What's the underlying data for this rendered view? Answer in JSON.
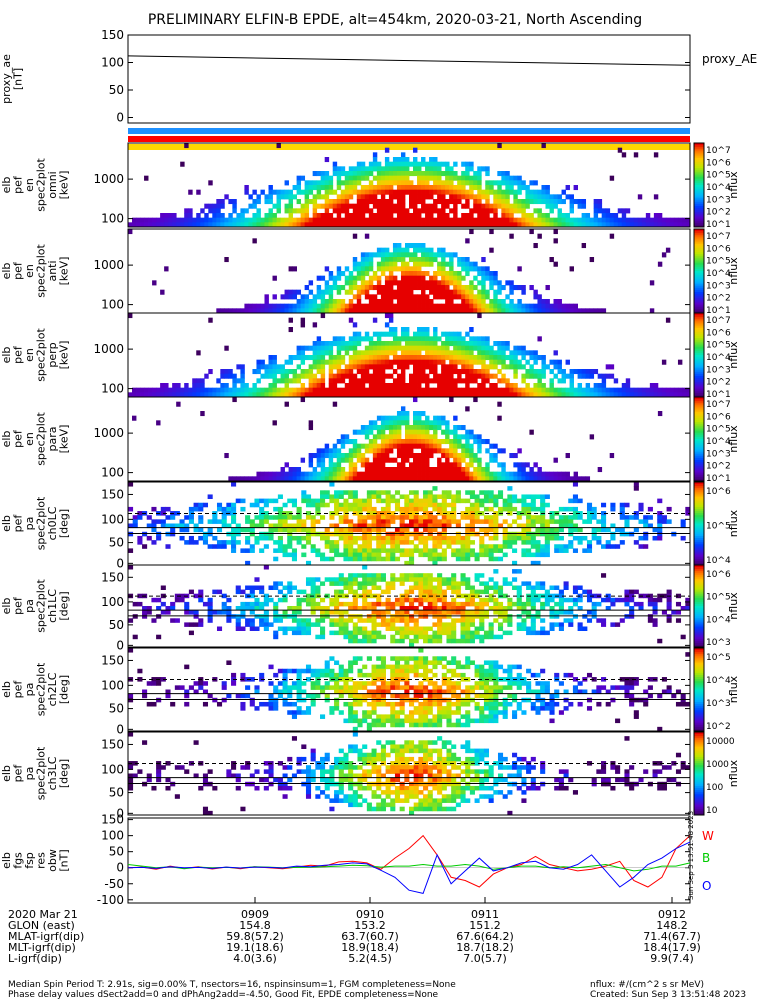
{
  "title": "PRELIMINARY ELFIN-B EPDE, alt=454km, 2020-03-21, North Ascending",
  "colors": {
    "w": "#ff0000",
    "b": "#00cc00",
    "o": "#0000ff",
    "bar1": "#1e90ff",
    "bar2": "#ff0000",
    "bar3": "#ffd700"
  },
  "chart_data": [
    {
      "type": "line",
      "panel": "proxy_ae",
      "ylabel": [
        "proxy_ae",
        "[nT]"
      ],
      "yticks": [
        "150",
        "100",
        "50",
        "0"
      ],
      "ylim": [
        -10,
        150
      ],
      "legend": "proxy_AE",
      "x": [
        0,
        1
      ],
      "values": [
        112,
        95
      ]
    },
    {
      "type": "heatmap",
      "panel": "en omni",
      "ylabel": [
        "elb",
        "pef",
        "en",
        "spec2plot",
        "omni",
        "[keV]"
      ],
      "yticks": [
        "1000",
        "100"
      ],
      "colorbar_label": "nflux",
      "colorbar_ticks": [
        "10^7",
        "10^6",
        "10^5",
        "10^4",
        "10^3",
        "10^2",
        "10^1"
      ]
    },
    {
      "type": "heatmap",
      "panel": "en anti",
      "ylabel": [
        "elb",
        "pef",
        "en",
        "spec2plot",
        "anti",
        "[keV]"
      ],
      "yticks": [
        "1000",
        "100"
      ],
      "colorbar_label": "nflux",
      "colorbar_ticks": [
        "10^7",
        "10^6",
        "10^5",
        "10^4",
        "10^3",
        "10^2",
        "10^1"
      ]
    },
    {
      "type": "heatmap",
      "panel": "en perp",
      "ylabel": [
        "elb",
        "pef",
        "en",
        "spec2plot",
        "perp",
        "[keV]"
      ],
      "yticks": [
        "1000",
        "100"
      ],
      "colorbar_label": "nflux",
      "colorbar_ticks": [
        "10^7",
        "10^6",
        "10^5",
        "10^4",
        "10^3",
        "10^2",
        "10^1"
      ]
    },
    {
      "type": "heatmap",
      "panel": "en para",
      "ylabel": [
        "elb",
        "pef",
        "en",
        "spec2plot",
        "para",
        "[keV]"
      ],
      "yticks": [
        "1000",
        "100"
      ],
      "colorbar_label": "nflux",
      "colorbar_ticks": [
        "10^7",
        "10^6",
        "10^5",
        "10^4",
        "10^3",
        "10^2",
        "10^1"
      ]
    },
    {
      "type": "heatmap",
      "panel": "ch0LC",
      "ylabel": [
        "elb",
        "pef",
        "pa",
        "spec2plot",
        "ch0LC",
        "[deg]"
      ],
      "yticks": [
        "150",
        "100",
        "50",
        "0"
      ],
      "colorbar_label": "nflux",
      "colorbar_ticks": [
        "10^6",
        "10^5",
        "10^4"
      ]
    },
    {
      "type": "heatmap",
      "panel": "ch1LC",
      "ylabel": [
        "elb",
        "pef",
        "pa",
        "spec2plot",
        "ch1LC",
        "[deg]"
      ],
      "yticks": [
        "150",
        "100",
        "50",
        "0"
      ],
      "colorbar_label": "nflux",
      "colorbar_ticks": [
        "10^6",
        "10^5",
        "10^4",
        "10^3"
      ]
    },
    {
      "type": "heatmap",
      "panel": "ch2LC",
      "ylabel": [
        "elb",
        "pef",
        "pa",
        "spec2plot",
        "ch2LC",
        "[deg]"
      ],
      "yticks": [
        "150",
        "100",
        "50",
        "0"
      ],
      "colorbar_label": "nflux",
      "colorbar_ticks": [
        "10^5",
        "10^4",
        "10^3",
        "10^2"
      ]
    },
    {
      "type": "heatmap",
      "panel": "ch3LC",
      "ylabel": [
        "elb",
        "pef",
        "pa",
        "spec2plot",
        "ch3LC",
        "[deg]"
      ],
      "yticks": [
        "150",
        "100",
        "50",
        "0"
      ],
      "colorbar_label": "nflux",
      "colorbar_ticks": [
        "10000",
        "1000",
        "100",
        "10"
      ]
    },
    {
      "type": "line",
      "panel": "fgs",
      "ylabel": [
        "elb",
        "fgs",
        "fsp",
        "res",
        "obw",
        "[nT]"
      ],
      "yticks": [
        "150",
        "100",
        "50",
        "0",
        "-50",
        "-100"
      ],
      "ylim": [
        -110,
        155
      ],
      "series": [
        {
          "name": "W",
          "values": [
            0,
            2,
            -5,
            5,
            -2,
            3,
            -4,
            2,
            -3,
            3,
            0,
            -3,
            2,
            8,
            5,
            18,
            20,
            15,
            -5,
            30,
            60,
            100,
            40,
            -30,
            -40,
            -60,
            -20,
            0,
            10,
            35,
            10,
            0,
            -10,
            -5,
            5,
            20,
            -40,
            -60,
            -30,
            60,
            100
          ]
        },
        {
          "name": "B",
          "values": [
            10,
            5,
            0,
            3,
            -3,
            2,
            0,
            1,
            -1,
            3,
            2,
            0,
            1,
            2,
            3,
            5,
            8,
            6,
            2,
            5,
            5,
            10,
            5,
            5,
            10,
            5,
            -5,
            0,
            5,
            5,
            0,
            3,
            0,
            5,
            10,
            0,
            -10,
            -5,
            5,
            5,
            15
          ]
        },
        {
          "name": "O",
          "values": [
            0,
            1,
            -2,
            3,
            0,
            1,
            -2,
            2,
            -1,
            2,
            1,
            -1,
            5,
            3,
            8,
            10,
            15,
            12,
            -8,
            -30,
            -70,
            -80,
            40,
            -50,
            -10,
            30,
            -10,
            0,
            15,
            20,
            0,
            -5,
            10,
            40,
            -10,
            -60,
            -30,
            10,
            30,
            60,
            80
          ]
        }
      ]
    }
  ],
  "xaxis": {
    "rows": [
      {
        "label": "2020 Mar 21",
        "values": [
          "0909",
          "0910",
          "0911",
          "0912"
        ]
      },
      {
        "label": "GLON (east)",
        "values": [
          "154.8",
          "153.2",
          "151.2",
          "148.2"
        ]
      },
      {
        "label": "MLAT-igrf(dip)",
        "values": [
          "59.8(57.2)",
          "63.7(60.7)",
          "67.6(64.2)",
          "71.4(67.7)"
        ]
      },
      {
        "label": "MLT-igrf(dip)",
        "values": [
          "19.1(18.6)",
          "18.9(18.4)",
          "18.7(18.2)",
          "18.4(17.9)"
        ]
      },
      {
        "label": "L-igrf(dip)",
        "values": [
          "4.0(3.6)",
          "5.2(4.5)",
          "7.0(5.7)",
          "9.9(7.4)"
        ]
      }
    ]
  },
  "footer": {
    "line1": "Median Spin Period T: 2.91s, sig=0.00% T, nsectors=16, nspinsinsum=1, FGM completeness=None",
    "line2": "Phase delay values dSect2add=0 and dPhAng2add=-4.50, Good Fit, EPDE completeness=None",
    "units": "nflux: #/(cm^2 s sr MeV)",
    "created": "Created: Sun Sep  3 13:51:48 2023",
    "vertical": "Sun Sep  3 13:51:48 2023"
  }
}
